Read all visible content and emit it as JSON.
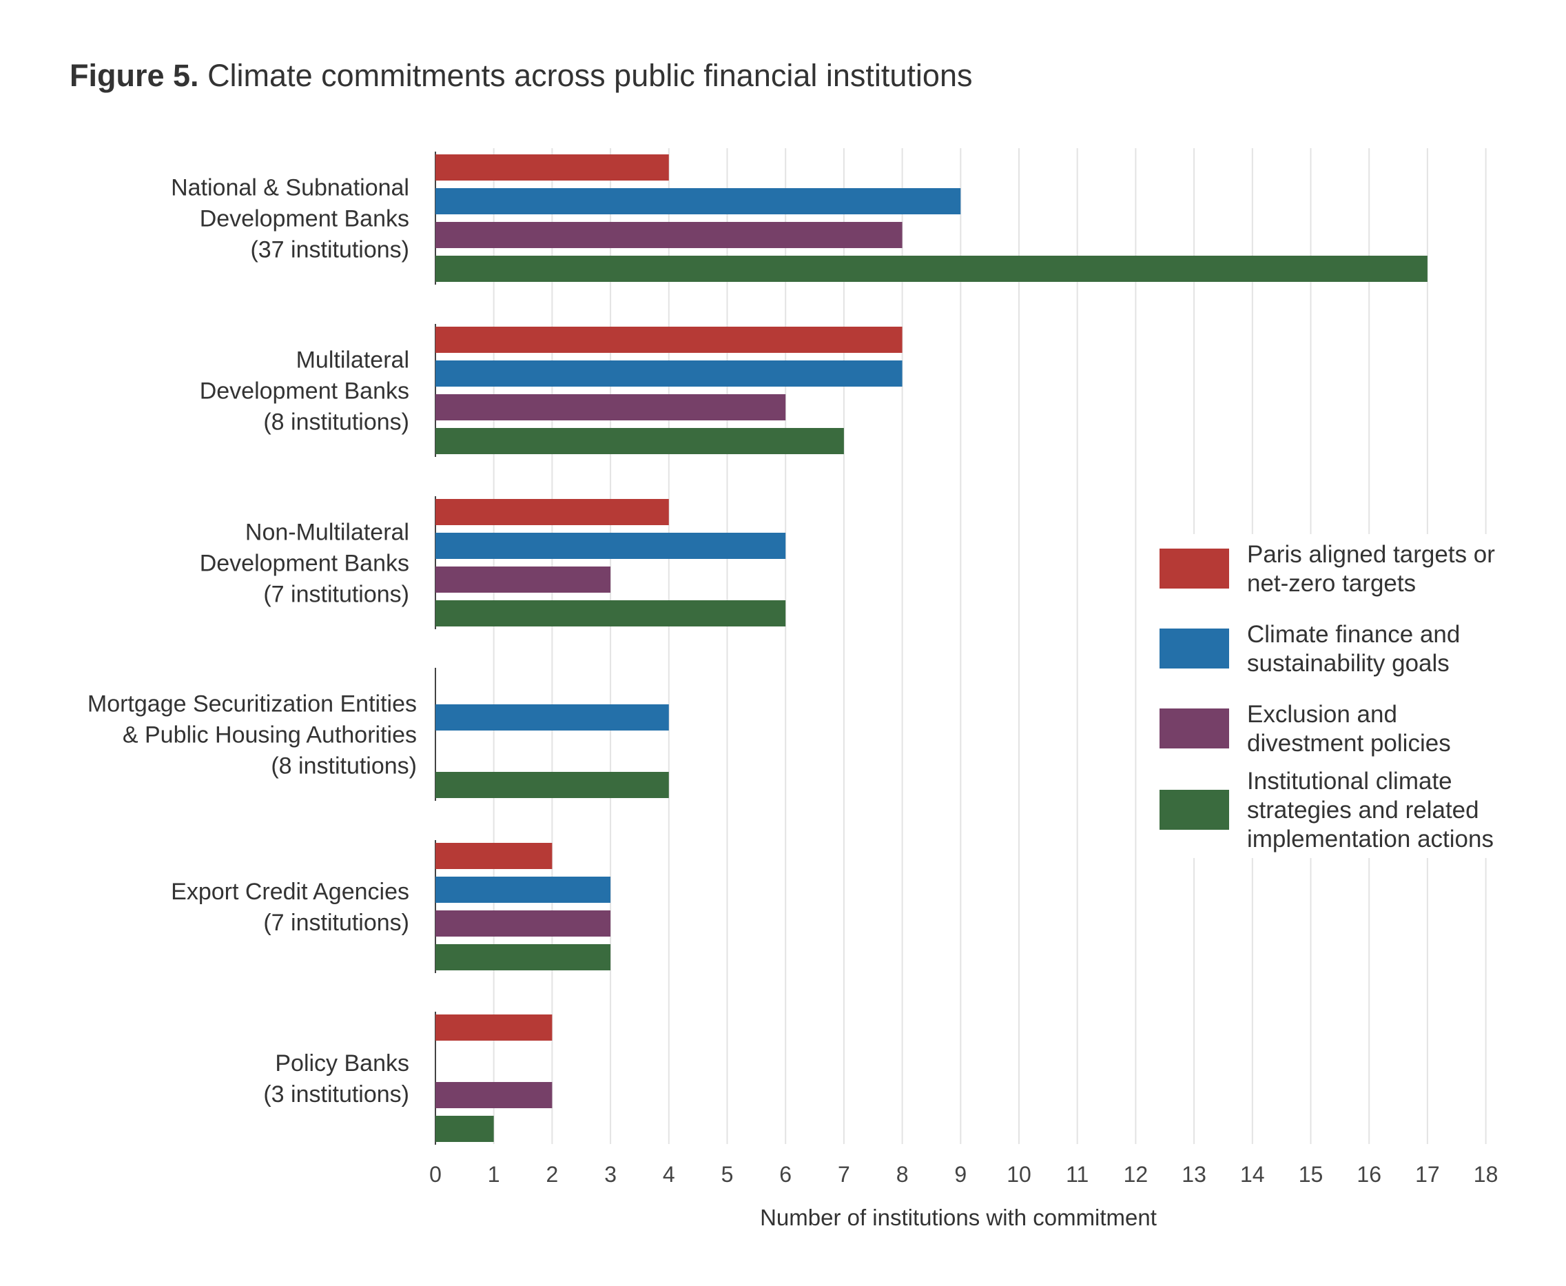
{
  "title": {
    "lead": "Figure 5.",
    "text": "Climate commitments across public financial institutions"
  },
  "chart_data": {
    "type": "bar",
    "orientation": "horizontal",
    "categories": [
      [
        "National & Subnational",
        "Development Banks",
        "(37 institutions)"
      ],
      [
        "Multilateral",
        "Development Banks",
        "(8 institutions)"
      ],
      [
        "Non-Multilateral",
        "Development Banks",
        "(7 institutions)"
      ],
      [
        "Mortgage Securitization Entities",
        "& Public Housing Authorities",
        "(8 institutions)"
      ],
      [
        "Export Credit Agencies",
        "(7 institutions)"
      ],
      [
        "Policy Banks",
        "(3 institutions)"
      ]
    ],
    "series": [
      {
        "name": [
          "Paris aligned targets or",
          "net-zero targets"
        ],
        "color": "#B63A36",
        "values": [
          4,
          8,
          4,
          0,
          2,
          2
        ]
      },
      {
        "name": [
          "Climate finance and",
          "sustainability goals"
        ],
        "color": "#2470A9",
        "values": [
          9,
          8,
          6,
          4,
          3,
          0
        ]
      },
      {
        "name": [
          "Exclusion and",
          "divestment policies"
        ],
        "color": "#764068",
        "values": [
          8,
          6,
          3,
          0,
          3,
          2
        ]
      },
      {
        "name": [
          "Institutional climate",
          "strategies and related",
          "implementation actions"
        ],
        "color": "#3A6B3E",
        "values": [
          17,
          7,
          6,
          4,
          3,
          1
        ]
      }
    ],
    "xlabel": "Number of institutions with commitment",
    "xlim": [
      0,
      18
    ],
    "xticks": [
      "0",
      "1",
      "2",
      "3",
      "4",
      "5",
      "6",
      "7",
      "8",
      "9",
      "10",
      "11",
      "12",
      "13",
      "14",
      "15",
      "16",
      "17",
      "18"
    ],
    "grid": "vertical",
    "legend_position": "right"
  }
}
